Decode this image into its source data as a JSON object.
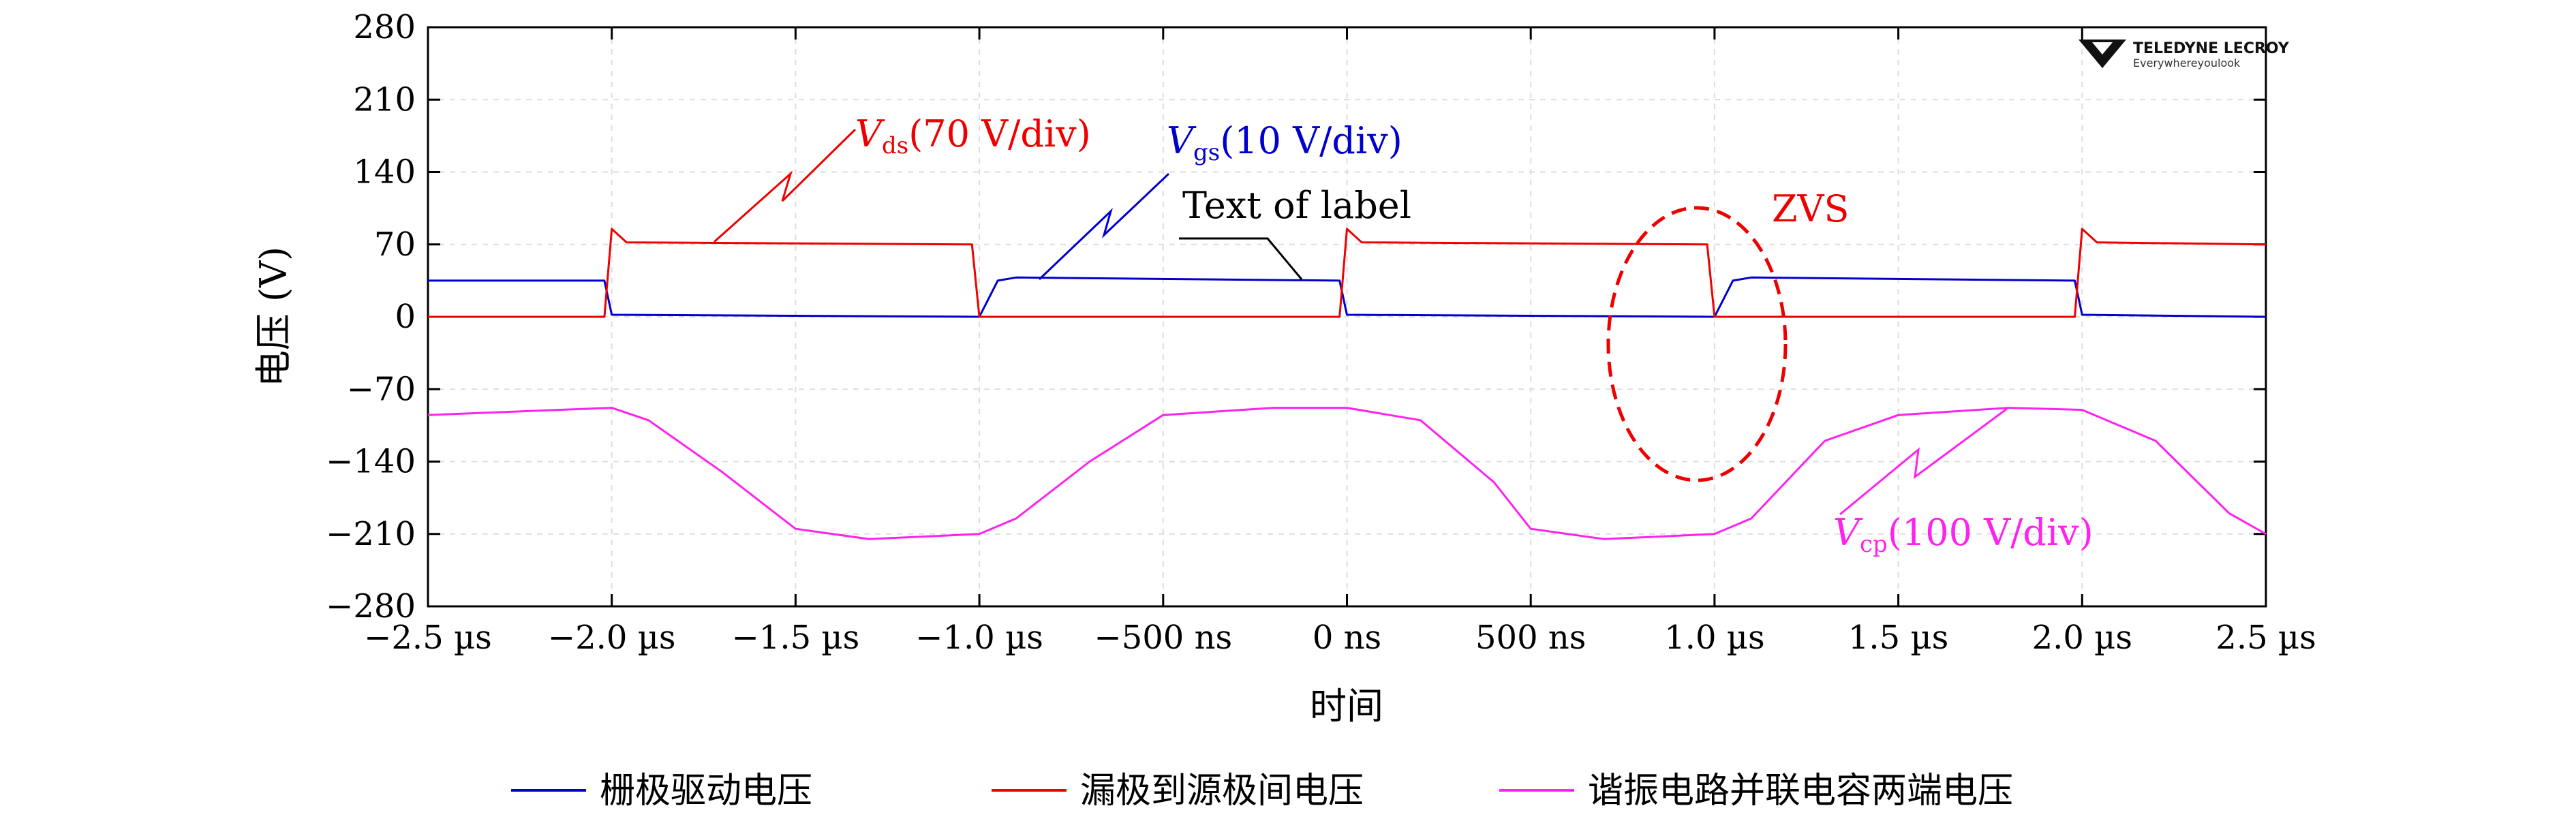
{
  "chart_data": {
    "type": "line",
    "ylabel": "电压 (V)",
    "xlabel": "时间",
    "x_unit_note": "time in microseconds",
    "xlim": [
      -2.5,
      2.5
    ],
    "ylim": [
      -280,
      280
    ],
    "x_ticks": [
      -2.5,
      -2.0,
      -1.5,
      -1.0,
      -0.5,
      0,
      0.5,
      1.0,
      1.5,
      2.0,
      2.5
    ],
    "x_tick_labels": [
      "−2.5 µs",
      "−2.0 µs",
      "−1.5 µs",
      "−1.0 µs",
      "−500 ns",
      "0 ns",
      "500 ns",
      "1.0 µs",
      "1.5 µs",
      "2.0 µs",
      "2.5 µs"
    ],
    "y_ticks": [
      280,
      210,
      140,
      70,
      0,
      -70,
      -140,
      -210,
      -280
    ],
    "y_tick_labels": [
      "280",
      "210",
      "140",
      "70",
      "0",
      "−70",
      "−140",
      "−210",
      "−280"
    ],
    "grid": true,
    "legend_position": "bottom",
    "series": [
      {
        "name": "栅极驱动电压",
        "color": "#0000cc",
        "points": [
          [
            -2.5,
            35
          ],
          [
            -2.02,
            35
          ],
          [
            -2.0,
            2
          ],
          [
            -1.0,
            0
          ],
          [
            -0.95,
            35
          ],
          [
            -0.9,
            38
          ],
          [
            -0.02,
            35
          ],
          [
            0.0,
            2
          ],
          [
            1.0,
            0
          ],
          [
            1.05,
            35
          ],
          [
            1.1,
            38
          ],
          [
            1.98,
            35
          ],
          [
            2.0,
            2
          ],
          [
            2.5,
            0
          ]
        ]
      },
      {
        "name": "漏极到源极间电压",
        "color": "#ee0000",
        "points": [
          [
            -2.5,
            0
          ],
          [
            -2.02,
            0
          ],
          [
            -2.0,
            85
          ],
          [
            -1.96,
            72
          ],
          [
            -1.02,
            70
          ],
          [
            -1.0,
            0
          ],
          [
            -0.02,
            0
          ],
          [
            0.0,
            85
          ],
          [
            0.04,
            72
          ],
          [
            0.98,
            70
          ],
          [
            1.0,
            0
          ],
          [
            1.98,
            0
          ],
          [
            2.0,
            85
          ],
          [
            2.04,
            72
          ],
          [
            2.5,
            70
          ]
        ]
      },
      {
        "name": "谐振电路并联电容两端电压",
        "color": "#ff22ee",
        "points": [
          [
            -2.5,
            -95
          ],
          [
            -2.0,
            -88
          ],
          [
            -1.9,
            -100
          ],
          [
            -1.7,
            -150
          ],
          [
            -1.5,
            -205
          ],
          [
            -1.3,
            -215
          ],
          [
            -1.0,
            -210
          ],
          [
            -0.9,
            -195
          ],
          [
            -0.7,
            -140
          ],
          [
            -0.5,
            -95
          ],
          [
            -0.2,
            -88
          ],
          [
            0.0,
            -88
          ],
          [
            0.2,
            -100
          ],
          [
            0.4,
            -160
          ],
          [
            0.5,
            -205
          ],
          [
            0.7,
            -215
          ],
          [
            1.0,
            -210
          ],
          [
            1.1,
            -195
          ],
          [
            1.3,
            -120
          ],
          [
            1.5,
            -95
          ],
          [
            1.8,
            -88
          ],
          [
            2.0,
            -90
          ],
          [
            2.2,
            -120
          ],
          [
            2.4,
            -190
          ],
          [
            2.5,
            -210
          ]
        ]
      }
    ],
    "annotations": [
      {
        "text": "ds",
        "base": "V",
        "suffix": "(70 V/div)",
        "color": "#ee0000"
      },
      {
        "text": "gs",
        "base": "V",
        "suffix": "(10 V/div)",
        "color": "#0000cc"
      },
      {
        "text": "cp",
        "base": "V",
        "suffix": "(100 V/div)",
        "color": "#ff22ee"
      },
      {
        "text": "Text of label",
        "color": "#000000"
      },
      {
        "text": "ZVS",
        "color": "#ee0000"
      }
    ],
    "logo": {
      "line1": "TELEDYNE LECROY",
      "line2": "Everywhereyoulook"
    }
  }
}
